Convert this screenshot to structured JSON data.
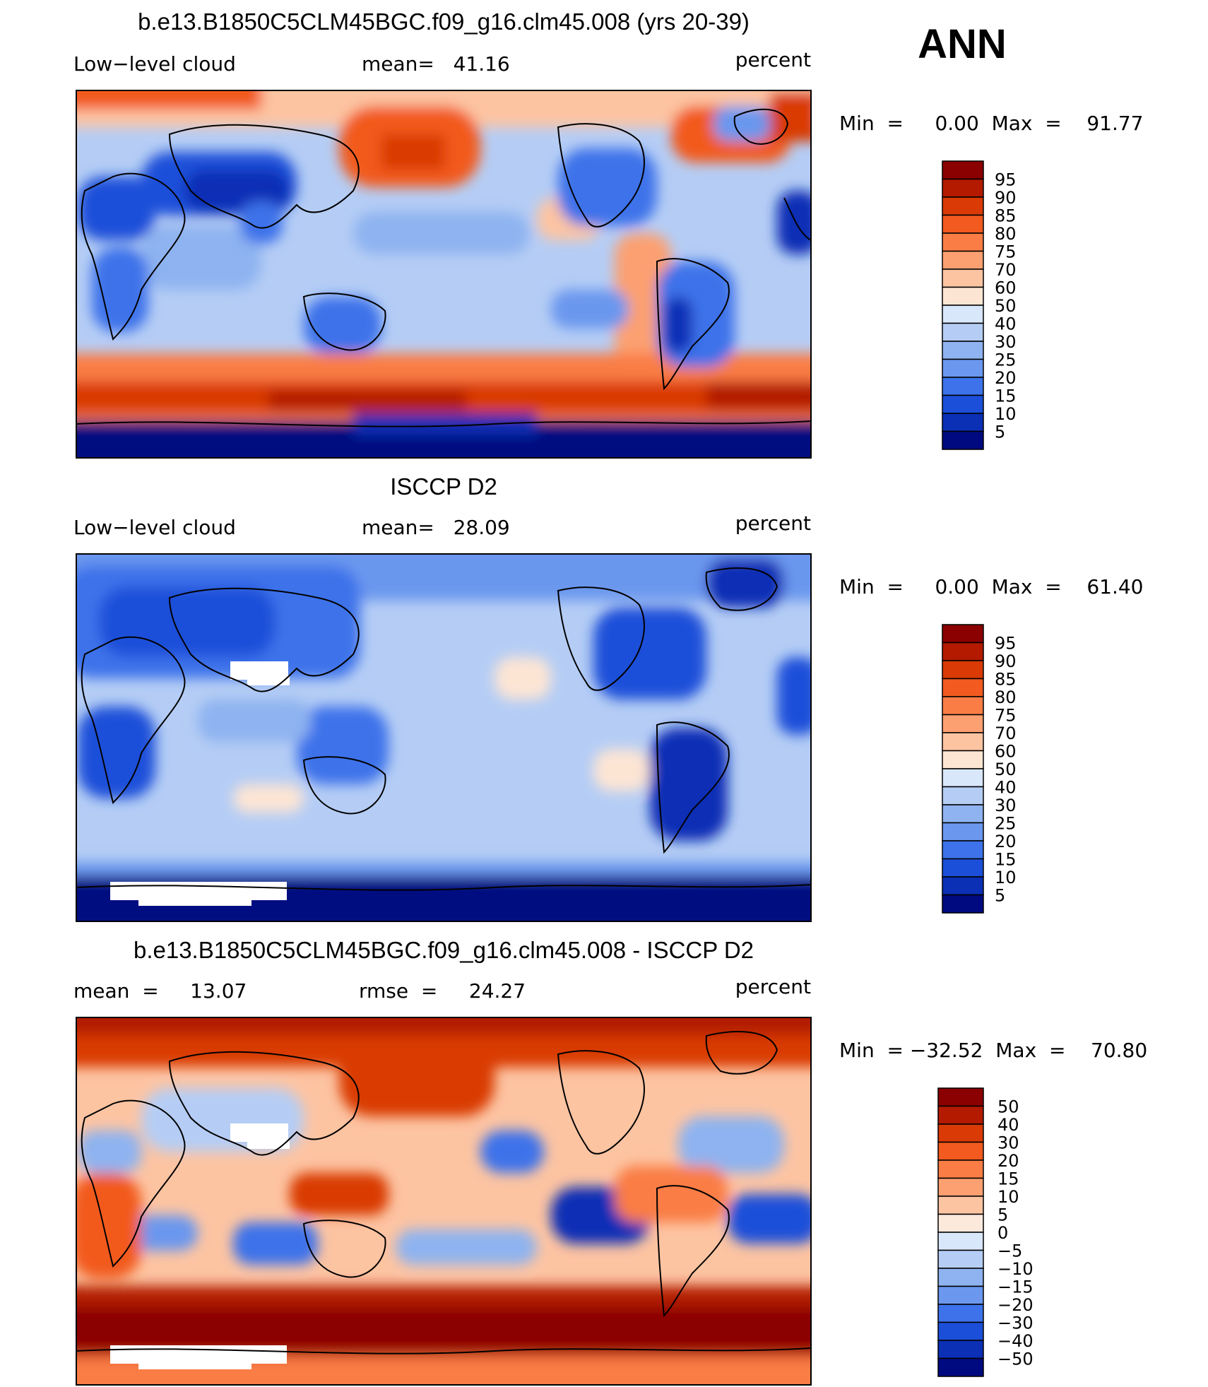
{
  "season": "ANN",
  "chart_data": [
    {
      "type": "heatmap",
      "title": "b.e13.B1850C5CLM45BGC.f09_g16.clm45.008 (yrs 20-39)",
      "left_label": "Low−level cloud",
      "center_label": "mean=   41.16",
      "units": "percent",
      "mean": 41.16,
      "min_max": "Min  =     0.00  Max  =    91.77",
      "min": 0.0,
      "max": 91.77,
      "colorbar": {
        "levels": [
          "95",
          "90",
          "85",
          "80",
          "75",
          "70",
          "60",
          "50",
          "40",
          "30",
          "25",
          "20",
          "15",
          "10",
          "5"
        ],
        "colors": [
          "#8b0000",
          "#b31a00",
          "#d93a06",
          "#f25a1f",
          "#fa7d45",
          "#fca071",
          "#fdc4a2",
          "#fde5d4",
          "#d9e7fa",
          "#b5cdf5",
          "#8eb3f0",
          "#6b97ee",
          "#3d72ea",
          "#1c4fd9",
          "#0b2fb5",
          "#000a80"
        ]
      }
    },
    {
      "type": "heatmap",
      "title": "ISCCP D2",
      "left_label": "Low−level cloud",
      "center_label": "mean=   28.09",
      "units": "percent",
      "mean": 28.09,
      "min_max": "Min  =     0.00  Max  =    61.40",
      "min": 0.0,
      "max": 61.4,
      "colorbar": {
        "levels": [
          "95",
          "90",
          "85",
          "80",
          "75",
          "70",
          "60",
          "50",
          "40",
          "30",
          "25",
          "20",
          "15",
          "10",
          "5"
        ],
        "colors": [
          "#8b0000",
          "#b31a00",
          "#d93a06",
          "#f25a1f",
          "#fa7d45",
          "#fca071",
          "#fdc4a2",
          "#fde5d4",
          "#d9e7fa",
          "#b5cdf5",
          "#8eb3f0",
          "#6b97ee",
          "#3d72ea",
          "#1c4fd9",
          "#0b2fb5",
          "#000a80"
        ]
      }
    },
    {
      "type": "heatmap",
      "title": "b.e13.B1850C5CLM45BGC.f09_g16.clm45.008 - ISCCP D2",
      "left_label": "mean  =     13.07",
      "center_label": "rmse  =     24.27",
      "units": "percent",
      "mean": 13.07,
      "rmse": 24.27,
      "min_max": "Min  = −32.52  Max  =    70.80",
      "min": -32.52,
      "max": 70.8,
      "colorbar": {
        "levels": [
          "50",
          "40",
          "30",
          "20",
          "15",
          "10",
          "5",
          "0",
          "−5",
          "−10",
          "−15",
          "−20",
          "−30",
          "−40",
          "−50"
        ],
        "colors": [
          "#8b0000",
          "#b31a00",
          "#d93a06",
          "#f25a1f",
          "#fa7d45",
          "#fca071",
          "#fdc4a2",
          "#fde9dc",
          "#d9e7fa",
          "#b5cdf5",
          "#8eb3f0",
          "#6b97ee",
          "#3d72ea",
          "#1c4fd9",
          "#0b2fb5",
          "#000a80"
        ]
      }
    }
  ]
}
